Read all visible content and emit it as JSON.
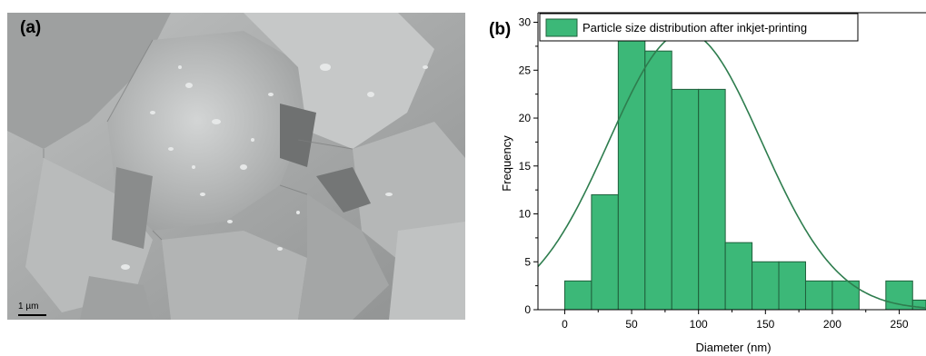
{
  "panel_a": {
    "label": "(a)",
    "scale_bar": "1 µm"
  },
  "panel_b": {
    "label": "(b)"
  },
  "chart_data": {
    "type": "bar",
    "legend": {
      "label": "Particle size distribution after inkjet-printing",
      "placement": "top"
    },
    "xlabel": "Diameter (nm)",
    "ylabel": "Frequency",
    "xlim": [
      -20,
      270
    ],
    "ylim": [
      0,
      31
    ],
    "bin_width": 20,
    "bins_start": [
      0,
      20,
      40,
      60,
      80,
      100,
      120,
      140,
      160,
      180,
      200,
      220,
      240,
      260
    ],
    "values": [
      3,
      12,
      29,
      27,
      23,
      23,
      7,
      5,
      5,
      3,
      3,
      0,
      3,
      1
    ],
    "x_ticks": [
      0,
      50,
      100,
      150,
      200,
      250
    ],
    "y_ticks": [
      0,
      5,
      10,
      15,
      20,
      25,
      30
    ],
    "fit_curve": {
      "type": "normal",
      "peak": 29,
      "mean": 90,
      "sd": 57
    },
    "colors": {
      "bar_fill": "#3cb878",
      "bar_stroke": "#1f5f3b",
      "curve": "#2e7d4e"
    },
    "grid": false
  }
}
